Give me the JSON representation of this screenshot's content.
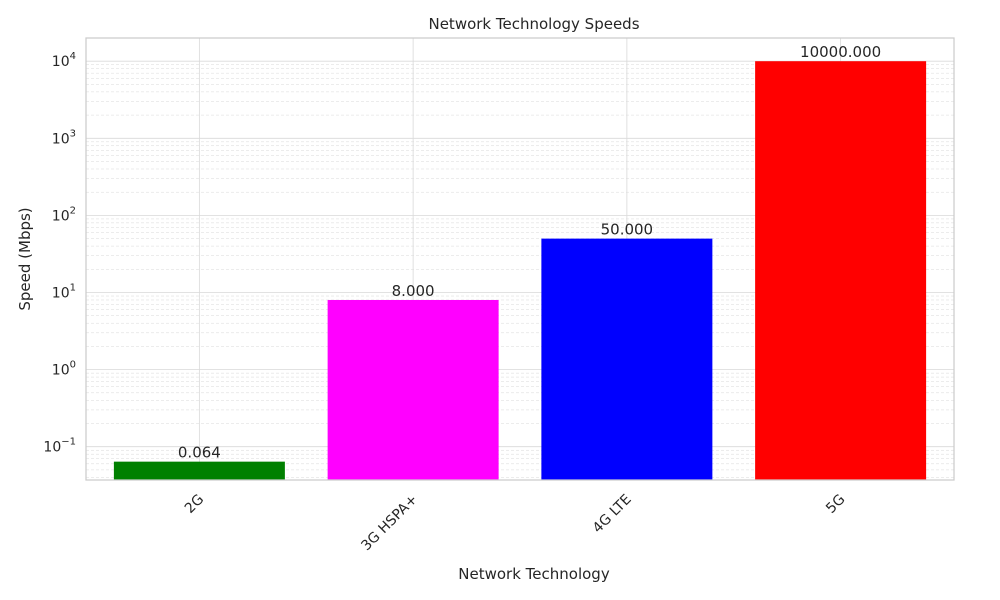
{
  "chart_data": {
    "type": "bar",
    "title": "Network Technology Speeds",
    "xlabel": "Network Technology",
    "ylabel": "Speed (Mbps)",
    "yscale": "log",
    "ylim": [
      0.037,
      20000
    ],
    "yticks": [
      {
        "base": "10",
        "exp": "−1"
      },
      {
        "base": "10",
        "exp": "0"
      },
      {
        "base": "10",
        "exp": "1"
      },
      {
        "base": "10",
        "exp": "2"
      },
      {
        "base": "10",
        "exp": "3"
      },
      {
        "base": "10",
        "exp": "4"
      }
    ],
    "categories": [
      "2G",
      "3G HSPA+",
      "4G LTE",
      "5G"
    ],
    "values": [
      0.064,
      8,
      50,
      10000
    ],
    "data_labels": [
      "0.064",
      "8.000",
      "50.000",
      "10000.000"
    ],
    "colors": [
      "#008000",
      "#ff00ff",
      "#0000ff",
      "#ff0000"
    ],
    "grid": true,
    "grid_minor": true
  }
}
